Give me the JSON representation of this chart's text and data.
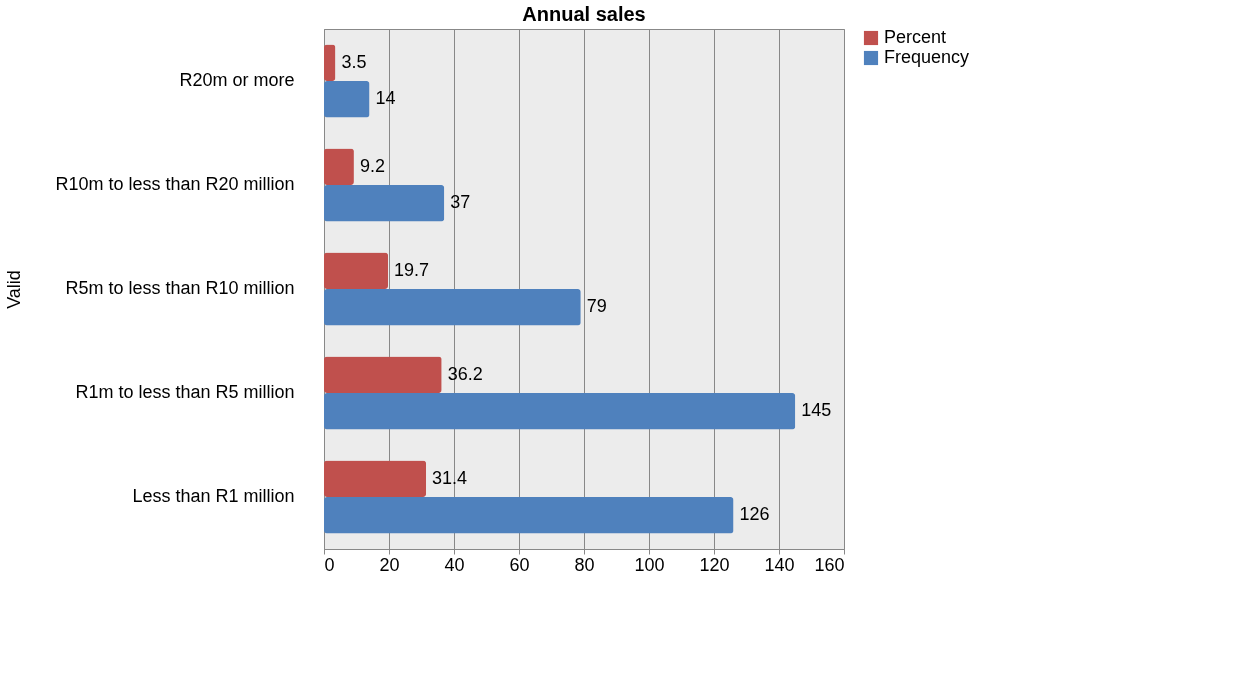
{
  "chart_data": {
    "type": "bar",
    "orientation": "horizontal",
    "title": "Annual sales",
    "ylabel": "Valid",
    "categories": [
      "R20m or more",
      "R10m to less than R20 million",
      "R5m to less than R10 million",
      "R1m to less than R5 million",
      "Less than R1 million"
    ],
    "series": [
      {
        "name": "Percent",
        "color": "#c0504d",
        "values": [
          3.5,
          9.2,
          19.7,
          36.2,
          31.4
        ]
      },
      {
        "name": "Frequency",
        "color": "#4f81bd",
        "values": [
          14,
          37,
          79,
          145,
          126
        ]
      }
    ],
    "xlim": [
      0,
      160
    ],
    "xticks": [
      0,
      20,
      40,
      60,
      80,
      100,
      120,
      140,
      160
    ],
    "grid": "x",
    "legend": "right",
    "data_labels": true
  }
}
